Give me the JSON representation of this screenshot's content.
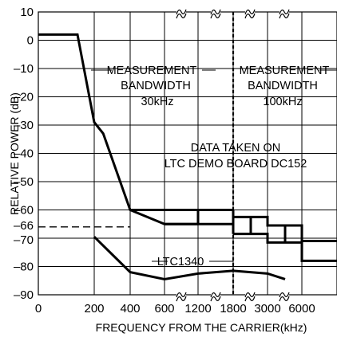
{
  "chart_data": {
    "type": "line",
    "xlabel": "FREQUENCY FROM THE CARRIER(kHz)",
    "ylabel": "RELATIVE POWER (dB)",
    "ylim": [
      -90,
      10
    ],
    "grid": true,
    "x_ticks": [
      "0",
      "200",
      "400",
      "600",
      "1200",
      "1800",
      "3000",
      "6000"
    ],
    "y_ticks": [
      {
        "v": 10,
        "label": "10"
      },
      {
        "v": 0,
        "label": "0"
      },
      {
        "v": -10,
        "label": "–10"
      },
      {
        "v": -20,
        "label": "–20"
      },
      {
        "v": -30,
        "label": "–30"
      },
      {
        "v": -40,
        "label": "–40"
      },
      {
        "v": -50,
        "label": "–50"
      },
      {
        "v": -60,
        "label": "–60"
      },
      {
        "v": -66,
        "label": "–66"
      },
      {
        "v": -70,
        "label": "–70"
      },
      {
        "v": -80,
        "label": "–80"
      },
      {
        "v": -90,
        "label": "–90"
      }
    ],
    "annotations": {
      "mbw_left": [
        "MEASUREMENT",
        "BANDWIDTH",
        "30kHz"
      ],
      "mbw_right": [
        "MEASUREMENT",
        "BANDWIDTH",
        "100kHz"
      ],
      "data_taken": [
        "DATA TAKEN ON",
        "LTC DEMO BOARD DC152"
      ],
      "device": "LTC1340"
    },
    "series": [
      {
        "x": [
          0,
          100,
          200,
          250,
          400,
          600,
          1200
        ],
        "y": [
          2,
          2,
          -29,
          -33,
          -60,
          -65,
          -65
        ]
      },
      {
        "x": [
          400,
          600,
          1200
        ],
        "y": [
          -60,
          -60,
          -60
        ]
      },
      {
        "x": [
          1800,
          2400,
          3000,
          3600,
          4200,
          5000
        ],
        "y": [
          -62.5,
          -62.5,
          -65.5,
          -65.5,
          -71,
          -71
        ]
      },
      {
        "x": [
          1800,
          2400,
          3000,
          3600,
          4200,
          5000
        ],
        "y": [
          -68.5,
          -68.5,
          -71.5,
          -71.5,
          -78,
          -78
        ]
      },
      {
        "name": "LTC1340",
        "x": [
          200,
          400,
          600,
          1200,
          1800,
          3000,
          3600
        ],
        "y": [
          -69.5,
          -82,
          -84.5,
          -82.5,
          -81.5,
          -82.5,
          -84.5
        ]
      }
    ],
    "reference_line": {
      "y": -66,
      "x": [
        0,
        400
      ]
    },
    "divider_x": 1800
  }
}
